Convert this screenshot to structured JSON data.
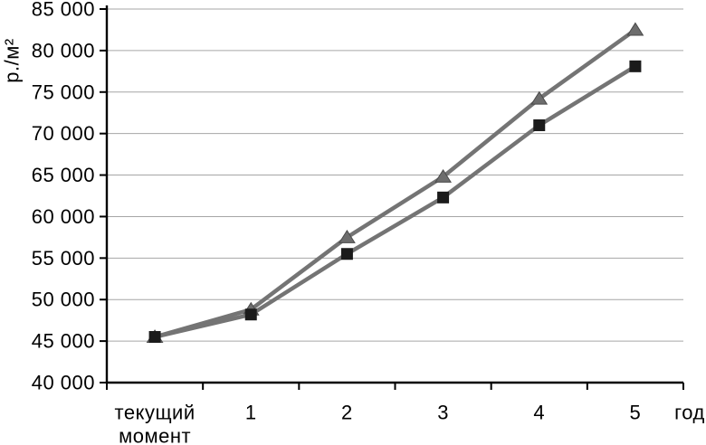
{
  "figure": {
    "background": "#ffffff"
  },
  "chart_data": {
    "type": "line",
    "title": "",
    "ylabel": "р./м²",
    "xlabel": "год",
    "categories": [
      "текущий момент",
      "1",
      "2",
      "3",
      "4",
      "5"
    ],
    "series": [
      {
        "name": "triangle-marker-series",
        "marker": "triangle",
        "line_color": "#747474",
        "marker_color": "#6d6d6d",
        "marker_edge": "#4a4a4a",
        "values": [
          45500,
          48800,
          57500,
          64800,
          74200,
          82500
        ]
      },
      {
        "name": "square-marker-series",
        "marker": "square",
        "line_color": "#747474",
        "marker_color": "#1b1b1b",
        "marker_edge": "#1b1b1b",
        "values": [
          45500,
          48200,
          55500,
          62300,
          71000,
          78100
        ]
      }
    ],
    "ylim": [
      40000,
      85000
    ],
    "ytick_step": 5000,
    "yticks": [
      {
        "value": 40000,
        "label": "40 000"
      },
      {
        "value": 45000,
        "label": "45 000"
      },
      {
        "value": 50000,
        "label": "50 000"
      },
      {
        "value": 55000,
        "label": "55 000"
      },
      {
        "value": 60000,
        "label": "60 000"
      },
      {
        "value": 65000,
        "label": "65 000"
      },
      {
        "value": 70000,
        "label": "70 000"
      },
      {
        "value": 75000,
        "label": "75 000"
      },
      {
        "value": 80000,
        "label": "80 000"
      },
      {
        "value": 85000,
        "label": "85 000"
      }
    ],
    "grid": "horizontal",
    "legend": "none",
    "colors": {
      "grid": "#a6a6a6",
      "axis": "#000000",
      "text": "#000000"
    }
  }
}
